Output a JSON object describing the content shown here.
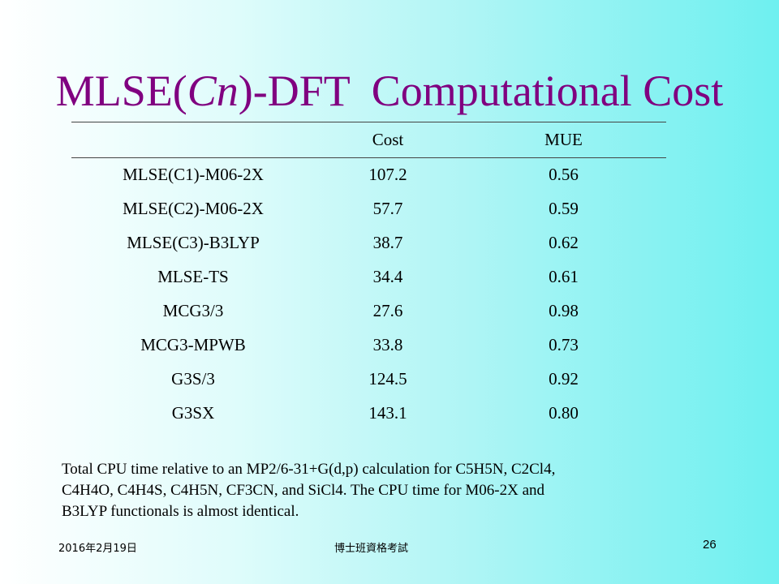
{
  "title": {
    "prefix": "MLSE(",
    "italic": "Cn",
    "suffix": ")-DFT  Computational Cost"
  },
  "table": {
    "headers": [
      "",
      "Cost",
      "MUE"
    ],
    "rows": [
      {
        "method": "MLSE(C1)-M06-2X",
        "cost": "107.2",
        "mue": "0.56"
      },
      {
        "method": "MLSE(C2)-M06-2X",
        "cost": "57.7",
        "mue": "0.59"
      },
      {
        "method": "MLSE(C3)-B3LYP",
        "cost": "38.7",
        "mue": "0.62"
      },
      {
        "method": "MLSE-TS",
        "cost": "34.4",
        "mue": "0.61"
      },
      {
        "method": "MCG3/3",
        "cost": "27.6",
        "mue": "0.98"
      },
      {
        "method": "MCG3-MPWB",
        "cost": "33.8",
        "mue": "0.73"
      },
      {
        "method": "G3S/3",
        "cost": "124.5",
        "mue": "0.92"
      },
      {
        "method": "G3SX",
        "cost": "143.1",
        "mue": "0.80"
      }
    ]
  },
  "note": {
    "line1": "Total CPU time relative to an MP2/6-31+G(d,p) calculation for C5H5N, C2Cl4,",
    "line2": "C4H4O, C4H4S, C4H5N, CF3CN, and SiCl4. The CPU time for M06-2X and",
    "line3": "B3LYP functionals is almost identical."
  },
  "footer": {
    "date": "2016年2月19日",
    "center": "博士班資格考試",
    "page": "26"
  },
  "colors": {
    "title": "#800080",
    "background_left": "#ffffff",
    "background_right": "#6ef0f0"
  }
}
